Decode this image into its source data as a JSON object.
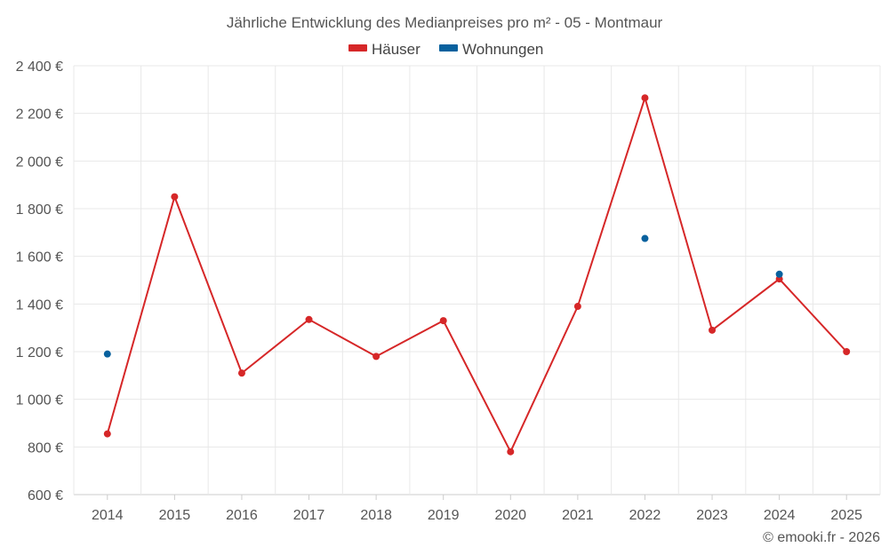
{
  "chart_data": {
    "type": "line",
    "title": "Jährliche Entwicklung des Medianpreises pro m² - 05 - Montmaur",
    "x": [
      "2014",
      "2015",
      "2016",
      "2017",
      "2018",
      "2019",
      "2020",
      "2021",
      "2022",
      "2023",
      "2024",
      "2025"
    ],
    "ylim": [
      600,
      2400
    ],
    "yticks": [
      600,
      800,
      1000,
      1200,
      1400,
      1600,
      1800,
      2000,
      2200,
      2400
    ],
    "ytick_labels": [
      "600 €",
      "800 €",
      "1 000 €",
      "1 200 €",
      "1 400 €",
      "1 600 €",
      "1 800 €",
      "2 000 €",
      "2 200 €",
      "2 400 €"
    ],
    "grid": true,
    "legend_position": "top-center",
    "series": [
      {
        "name": "Häuser",
        "color": "#d62728",
        "values": [
          855,
          1850,
          1110,
          1335,
          1180,
          1330,
          780,
          1390,
          2265,
          1290,
          1505,
          1200
        ]
      },
      {
        "name": "Wohnungen",
        "color": "#08619e",
        "values": [
          1190,
          null,
          null,
          null,
          null,
          null,
          null,
          null,
          1675,
          null,
          1525,
          null
        ]
      }
    ],
    "credit": "© emooki.fr - 2026"
  }
}
